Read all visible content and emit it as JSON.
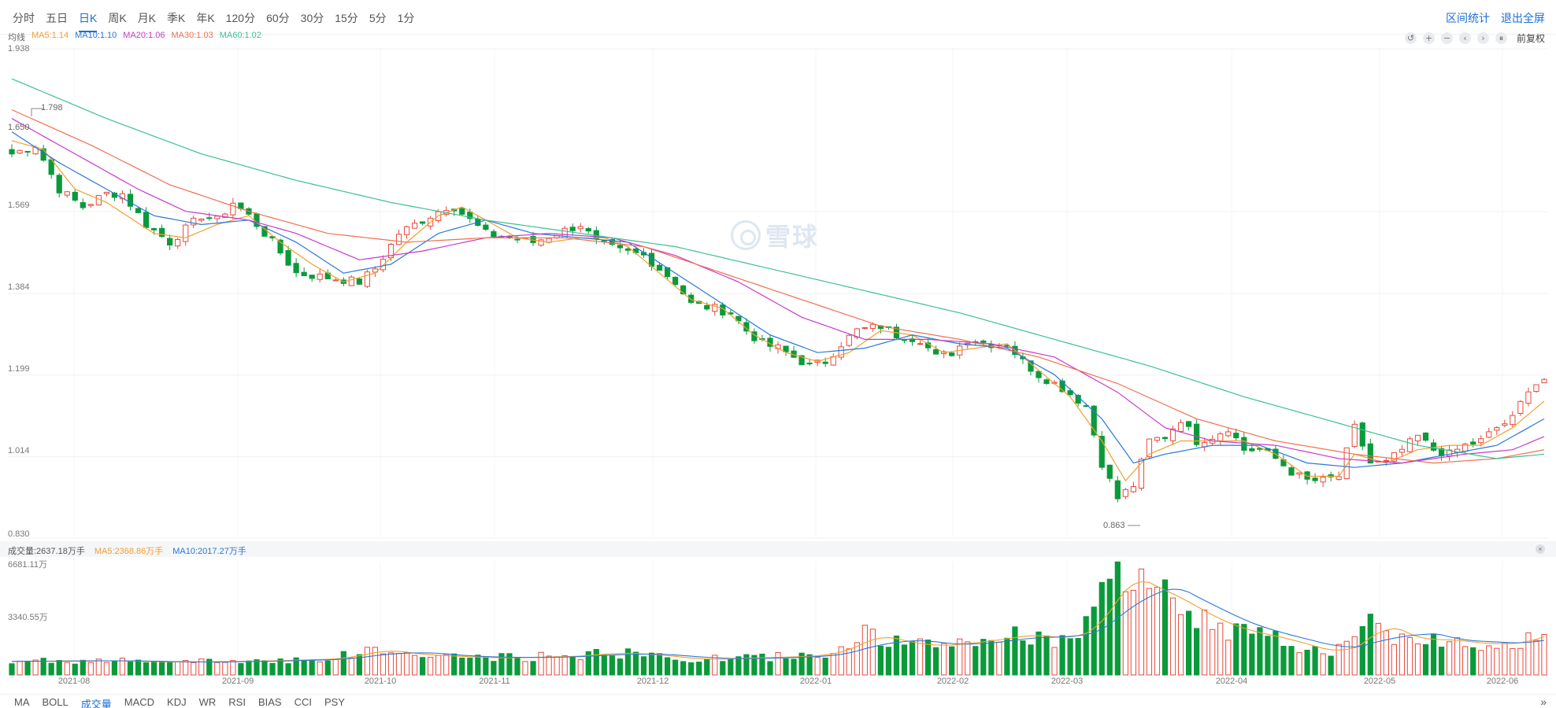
{
  "periods": [
    "分时",
    "五日",
    "日K",
    "周K",
    "月K",
    "季K",
    "年K",
    "120分",
    "60分",
    "30分",
    "15分",
    "5分",
    "1分"
  ],
  "active_period": "日K",
  "top_actions": {
    "range_stats": "区间统计",
    "exit_fullscreen": "退出全屏"
  },
  "ma_legend": {
    "label": "均线",
    "items": [
      {
        "text": "MA5:1.14",
        "color": "#f0a030"
      },
      {
        "text": "MA10:1.10",
        "color": "#2a78d8"
      },
      {
        "text": "MA20:1.06",
        "color": "#c93ac9"
      },
      {
        "text": "MA30:1.03",
        "color": "#f07050"
      },
      {
        "text": "MA60:1.02",
        "color": "#3cc090"
      }
    ]
  },
  "toolbar": {
    "fuquan": "前复权"
  },
  "y_axis": [
    "1.938",
    "1.569",
    "1.384",
    "1.199",
    "1.014",
    "0.830"
  ],
  "annotations": {
    "high": "1.798",
    "low": "0.863",
    "left_price": "1.650"
  },
  "watermark": "雪球",
  "volume": {
    "label": "成交量:2637.18万手",
    "ma5": "MA5:2368.86万手",
    "ma10": "MA10:2017.27万手",
    "max": "6681.11万",
    "mid": "3340.55万"
  },
  "x_axis": [
    "2021-08",
    "2021-09",
    "2021-10",
    "2021-11",
    "2021-12",
    "2022-01",
    "2022-02",
    "2022-03",
    "2022-04",
    "2022-05",
    "2022-06"
  ],
  "indicators": [
    "MA",
    "BOLL",
    "成交量",
    "MACD",
    "KDJ",
    "WR",
    "RSI",
    "BIAS",
    "CCI",
    "PSY"
  ],
  "active_indicator": "成交量",
  "colors": {
    "up": "#e8493c",
    "down": "#0a9a3a",
    "accent": "#1a6fd8"
  },
  "chart_data": {
    "type": "candlestick",
    "price_ylim": [
      0.83,
      1.938
    ],
    "price_anchors": [
      [
        0,
        1.7
      ],
      [
        3,
        1.72
      ],
      [
        6,
        1.62
      ],
      [
        9,
        1.58
      ],
      [
        12,
        1.61
      ],
      [
        14,
        1.61
      ],
      [
        17,
        1.54
      ],
      [
        20,
        1.5
      ],
      [
        22,
        1.53
      ],
      [
        24,
        1.56
      ],
      [
        26,
        1.55
      ],
      [
        28,
        1.59
      ],
      [
        30,
        1.56
      ],
      [
        33,
        1.5
      ],
      [
        36,
        1.43
      ],
      [
        40,
        1.42
      ],
      [
        44,
        1.41
      ],
      [
        46,
        1.44
      ],
      [
        49,
        1.52
      ],
      [
        52,
        1.55
      ],
      [
        55,
        1.58
      ],
      [
        56,
        1.58
      ],
      [
        60,
        1.52
      ],
      [
        63,
        1.51
      ],
      [
        66,
        1.5
      ],
      [
        69,
        1.52
      ],
      [
        72,
        1.54
      ],
      [
        74,
        1.5
      ],
      [
        77,
        1.48
      ],
      [
        80,
        1.47
      ],
      [
        84,
        1.41
      ],
      [
        86,
        1.36
      ],
      [
        89,
        1.35
      ],
      [
        91,
        1.34
      ],
      [
        93,
        1.3
      ],
      [
        95,
        1.27
      ],
      [
        97,
        1.26
      ],
      [
        99,
        1.24
      ],
      [
        101,
        1.22
      ],
      [
        103,
        1.23
      ],
      [
        105,
        1.27
      ],
      [
        107,
        1.3
      ],
      [
        110,
        1.31
      ],
      [
        112,
        1.29
      ],
      [
        115,
        1.28
      ],
      [
        117,
        1.24
      ],
      [
        119,
        1.25
      ],
      [
        121,
        1.28
      ],
      [
        124,
        1.27
      ],
      [
        126,
        1.27
      ],
      [
        128,
        1.23
      ],
      [
        130,
        1.2
      ],
      [
        133,
        1.17
      ],
      [
        136,
        1.13
      ],
      [
        138,
        1.0
      ],
      [
        140,
        0.92
      ],
      [
        142,
        0.95
      ],
      [
        144,
        1.05
      ],
      [
        146,
        1.06
      ],
      [
        148,
        1.1
      ],
      [
        150,
        1.05
      ],
      [
        152,
        1.06
      ],
      [
        154,
        1.08
      ],
      [
        156,
        1.03
      ],
      [
        158,
        1.03
      ],
      [
        160,
        1.01
      ],
      [
        162,
        0.98
      ],
      [
        164,
        0.96
      ],
      [
        166,
        0.96
      ],
      [
        168,
        0.97
      ],
      [
        170,
        1.08
      ],
      [
        172,
        1.0
      ],
      [
        174,
        1.0
      ],
      [
        176,
        1.03
      ],
      [
        178,
        1.06
      ],
      [
        180,
        1.03
      ],
      [
        182,
        1.02
      ],
      [
        184,
        1.04
      ],
      [
        186,
        1.05
      ],
      [
        188,
        1.08
      ],
      [
        190,
        1.1
      ],
      [
        192,
        1.17
      ],
      [
        194,
        1.19
      ]
    ],
    "ma_anchors": {
      "ma5": [
        [
          0,
          1.73
        ],
        [
          4,
          1.71
        ],
        [
          8,
          1.62
        ],
        [
          12,
          1.59
        ],
        [
          18,
          1.52
        ],
        [
          22,
          1.51
        ],
        [
          26,
          1.54
        ],
        [
          30,
          1.56
        ],
        [
          34,
          1.5
        ],
        [
          38,
          1.45
        ],
        [
          42,
          1.41
        ],
        [
          46,
          1.43
        ],
        [
          50,
          1.5
        ],
        [
          54,
          1.56
        ],
        [
          57,
          1.58
        ],
        [
          60,
          1.55
        ],
        [
          64,
          1.51
        ],
        [
          68,
          1.5
        ],
        [
          72,
          1.51
        ],
        [
          75,
          1.51
        ],
        [
          78,
          1.49
        ],
        [
          82,
          1.43
        ],
        [
          86,
          1.37
        ],
        [
          90,
          1.35
        ],
        [
          94,
          1.29
        ],
        [
          98,
          1.25
        ],
        [
          102,
          1.23
        ],
        [
          106,
          1.25
        ],
        [
          110,
          1.3
        ],
        [
          114,
          1.29
        ],
        [
          118,
          1.25
        ],
        [
          122,
          1.26
        ],
        [
          126,
          1.27
        ],
        [
          130,
          1.21
        ],
        [
          134,
          1.15
        ],
        [
          138,
          1.05
        ],
        [
          141,
          0.96
        ],
        [
          144,
          1.02
        ],
        [
          148,
          1.05
        ],
        [
          152,
          1.05
        ],
        [
          156,
          1.05
        ],
        [
          160,
          1.02
        ],
        [
          164,
          0.97
        ],
        [
          168,
          0.97
        ],
        [
          170,
          1.02
        ],
        [
          174,
          1.0
        ],
        [
          178,
          1.03
        ],
        [
          182,
          1.04
        ],
        [
          186,
          1.04
        ],
        [
          190,
          1.08
        ],
        [
          194,
          1.14
        ]
      ],
      "ma10": [
        [
          0,
          1.75
        ],
        [
          6,
          1.68
        ],
        [
          12,
          1.62
        ],
        [
          18,
          1.56
        ],
        [
          24,
          1.54
        ],
        [
          30,
          1.55
        ],
        [
          36,
          1.5
        ],
        [
          42,
          1.43
        ],
        [
          48,
          1.45
        ],
        [
          54,
          1.52
        ],
        [
          60,
          1.55
        ],
        [
          66,
          1.52
        ],
        [
          72,
          1.51
        ],
        [
          78,
          1.5
        ],
        [
          84,
          1.43
        ],
        [
          90,
          1.36
        ],
        [
          96,
          1.29
        ],
        [
          102,
          1.25
        ],
        [
          108,
          1.26
        ],
        [
          114,
          1.29
        ],
        [
          120,
          1.27
        ],
        [
          126,
          1.26
        ],
        [
          132,
          1.2
        ],
        [
          138,
          1.1
        ],
        [
          142,
          1.0
        ],
        [
          146,
          1.02
        ],
        [
          152,
          1.04
        ],
        [
          158,
          1.04
        ],
        [
          164,
          1.0
        ],
        [
          170,
          0.99
        ],
        [
          176,
          1.0
        ],
        [
          182,
          1.02
        ],
        [
          188,
          1.04
        ],
        [
          194,
          1.1
        ]
      ],
      "ma20": [
        [
          0,
          1.78
        ],
        [
          8,
          1.7
        ],
        [
          16,
          1.62
        ],
        [
          22,
          1.57
        ],
        [
          30,
          1.55
        ],
        [
          36,
          1.52
        ],
        [
          44,
          1.46
        ],
        [
          52,
          1.48
        ],
        [
          60,
          1.51
        ],
        [
          68,
          1.52
        ],
        [
          76,
          1.51
        ],
        [
          84,
          1.47
        ],
        [
          92,
          1.41
        ],
        [
          100,
          1.33
        ],
        [
          108,
          1.28
        ],
        [
          116,
          1.28
        ],
        [
          124,
          1.27
        ],
        [
          132,
          1.24
        ],
        [
          140,
          1.16
        ],
        [
          146,
          1.08
        ],
        [
          152,
          1.05
        ],
        [
          160,
          1.04
        ],
        [
          168,
          1.01
        ],
        [
          176,
          1.0
        ],
        [
          184,
          1.02
        ],
        [
          190,
          1.03
        ],
        [
          194,
          1.06
        ]
      ],
      "ma30": [
        [
          0,
          1.8
        ],
        [
          10,
          1.72
        ],
        [
          20,
          1.63
        ],
        [
          30,
          1.57
        ],
        [
          40,
          1.52
        ],
        [
          50,
          1.5
        ],
        [
          60,
          1.51
        ],
        [
          70,
          1.51
        ],
        [
          80,
          1.49
        ],
        [
          90,
          1.43
        ],
        [
          100,
          1.37
        ],
        [
          110,
          1.31
        ],
        [
          120,
          1.28
        ],
        [
          130,
          1.24
        ],
        [
          140,
          1.18
        ],
        [
          150,
          1.1
        ],
        [
          160,
          1.05
        ],
        [
          170,
          1.02
        ],
        [
          180,
          1.0
        ],
        [
          188,
          1.01
        ],
        [
          194,
          1.03
        ]
      ],
      "ma60": [
        [
          0,
          1.87
        ],
        [
          12,
          1.78
        ],
        [
          24,
          1.7
        ],
        [
          36,
          1.64
        ],
        [
          48,
          1.59
        ],
        [
          60,
          1.55
        ],
        [
          72,
          1.52
        ],
        [
          84,
          1.49
        ],
        [
          96,
          1.44
        ],
        [
          108,
          1.39
        ],
        [
          120,
          1.34
        ],
        [
          132,
          1.28
        ],
        [
          144,
          1.22
        ],
        [
          156,
          1.15
        ],
        [
          168,
          1.09
        ],
        [
          178,
          1.04
        ],
        [
          188,
          1.01
        ],
        [
          194,
          1.02
        ]
      ]
    },
    "volume_max": 6681.11,
    "volume_anchors": [
      [
        0,
        800
      ],
      [
        10,
        850
      ],
      [
        20,
        750
      ],
      [
        30,
        820
      ],
      [
        40,
        950
      ],
      [
        46,
        1500
      ],
      [
        50,
        1200
      ],
      [
        60,
        1000
      ],
      [
        70,
        1100
      ],
      [
        75,
        1300
      ],
      [
        80,
        1200
      ],
      [
        86,
        900
      ],
      [
        92,
        1000
      ],
      [
        100,
        1100
      ],
      [
        104,
        1400
      ],
      [
        108,
        2400
      ],
      [
        112,
        1900
      ],
      [
        116,
        1700
      ],
      [
        122,
        2000
      ],
      [
        128,
        2400
      ],
      [
        132,
        2100
      ],
      [
        136,
        2800
      ],
      [
        140,
        6000
      ],
      [
        142,
        5400
      ],
      [
        146,
        4600
      ],
      [
        150,
        3500
      ],
      [
        154,
        2700
      ],
      [
        160,
        2100
      ],
      [
        166,
        1300
      ],
      [
        170,
        1900
      ],
      [
        172,
        3200
      ],
      [
        176,
        2100
      ],
      [
        180,
        2100
      ],
      [
        186,
        1800
      ],
      [
        190,
        1900
      ],
      [
        194,
        2600
      ]
    ]
  }
}
